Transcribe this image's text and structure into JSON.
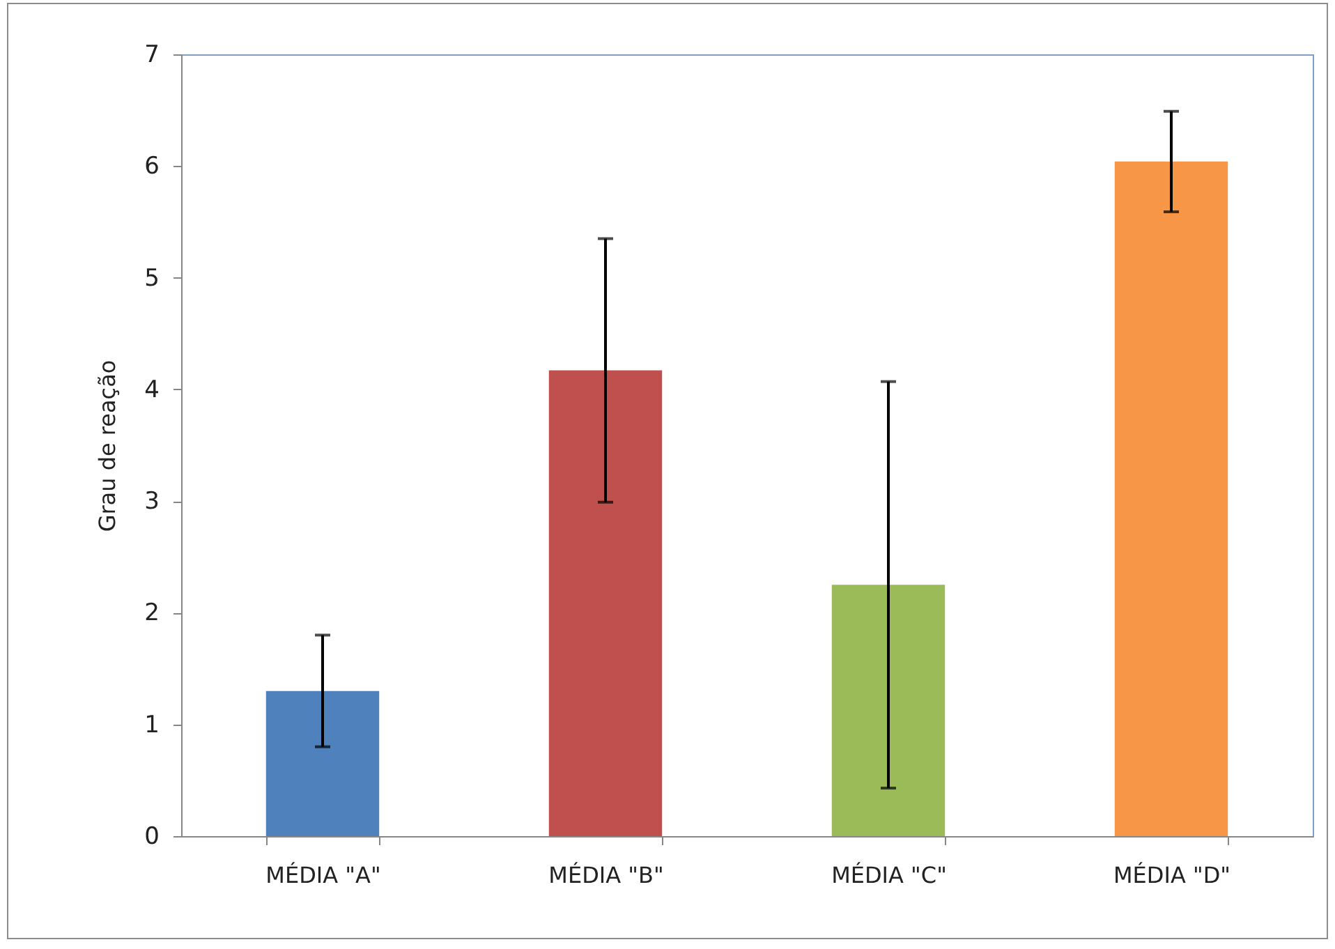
{
  "chart_data": {
    "type": "bar",
    "ylabel": "Grau de reação",
    "categories": [
      "MÉDIA \"A\"",
      "MÉDIA \"B\"",
      "MÉDIA \"C\"",
      "MÉDIA \"D\""
    ],
    "values": [
      1.3,
      4.17,
      2.25,
      6.04
    ],
    "errors": [
      0.5,
      1.18,
      1.82,
      0.45
    ],
    "colors": [
      "#4f81bd",
      "#c0504d",
      "#9bbb59",
      "#f79646"
    ],
    "ylim": [
      0,
      7
    ],
    "yticks": [
      0,
      1,
      2,
      3,
      4,
      5,
      6,
      7
    ],
    "grid": false
  }
}
